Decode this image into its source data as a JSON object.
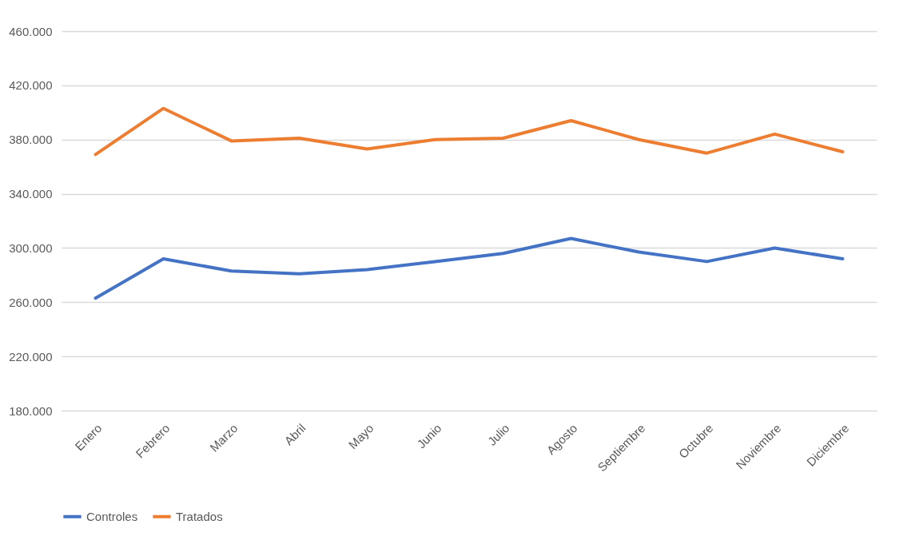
{
  "chart_data": {
    "type": "line",
    "categories": [
      "Enero",
      "Febrero",
      "Marzo",
      "Abril",
      "Mayo",
      "Junio",
      "Julio",
      "Agosto",
      "Septiembre",
      "Octubre",
      "Noviembre",
      "Diciembre"
    ],
    "series": [
      {
        "name": "Controles",
        "color": "#4472c4",
        "values": [
          263000,
          292000,
          283000,
          281000,
          284000,
          290000,
          296000,
          307000,
          297000,
          290000,
          300000,
          292000
        ]
      },
      {
        "name": "Tratados",
        "color": "#ed7d31",
        "values": [
          369000,
          403000,
          379000,
          381000,
          373000,
          380000,
          381000,
          394000,
          380000,
          370000,
          384000,
          371000
        ]
      }
    ],
    "ylim": [
      180000,
      460000
    ],
    "yticks": [
      {
        "value": 180000,
        "label": "180.000"
      },
      {
        "value": 220000,
        "label": "220.000"
      },
      {
        "value": 260000,
        "label": "260.000"
      },
      {
        "value": 300000,
        "label": "300.000"
      },
      {
        "value": 340000,
        "label": "340.000"
      },
      {
        "value": 380000,
        "label": "380.000"
      },
      {
        "value": 420000,
        "label": "420.000"
      },
      {
        "value": 460000,
        "label": "460.000"
      }
    ],
    "grid": "y",
    "legend": "bottom",
    "marker": "none",
    "line_style": "solid"
  }
}
